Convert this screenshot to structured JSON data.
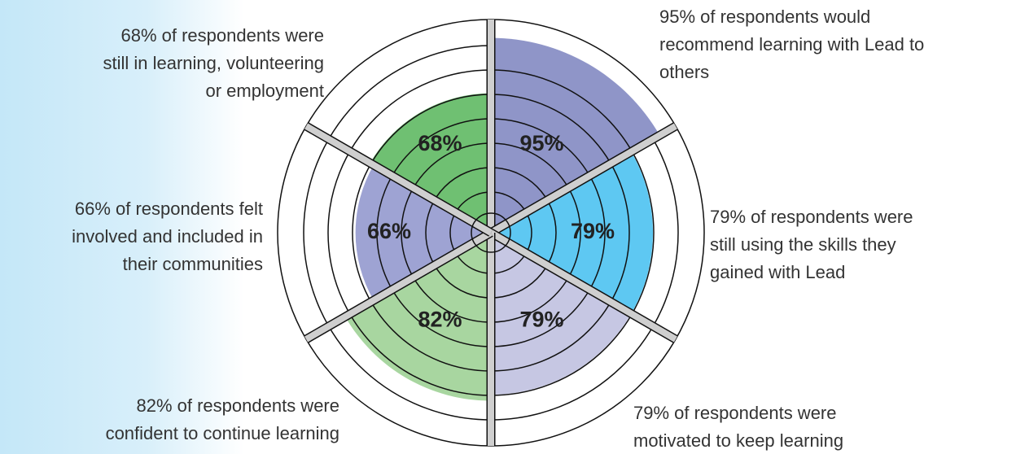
{
  "chart_data": {
    "type": "polar",
    "categories": [
      [
        "95% of respondents would",
        "recommend learning with Lead to",
        "others"
      ],
      [
        "79% of respondents were",
        "still using the skills they",
        "gained with Lead"
      ],
      [
        "79% of respondents were",
        "motivated to keep learning"
      ],
      [
        "82% of respondents were",
        "confident to continue learning"
      ],
      [
        "66% of respondents felt",
        "involved and included in",
        "their communities"
      ],
      [
        "68% of respondents were",
        "still in learning, volunteering",
        "or employment"
      ]
    ],
    "values": [
      95,
      79,
      79,
      82,
      66,
      68
    ],
    "value_labels": [
      "95%",
      "79%",
      "79%",
      "82%",
      "66%",
      "68%"
    ],
    "colors": [
      "#8f95c8",
      "#5ec8f2",
      "#c6c7e3",
      "#a8d6a0",
      "#9ea3d3",
      "#6fc072"
    ],
    "ylim": [
      0,
      100
    ]
  }
}
